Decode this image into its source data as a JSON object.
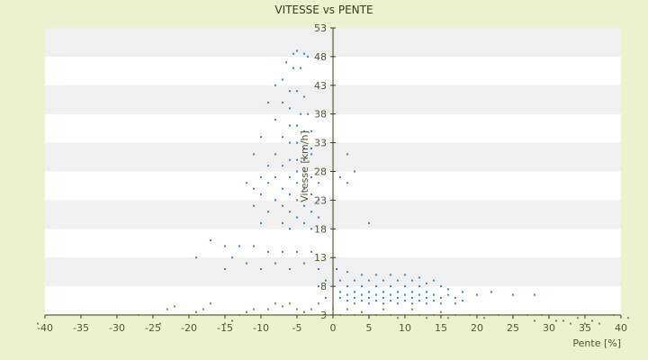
{
  "chart_data": {
    "type": "scatter",
    "title": "VITESSE vs PENTE",
    "xlabel": "Pente [%]",
    "ylabel": "Vitesse [km/h]",
    "xlim": [
      -40,
      40
    ],
    "ylim": [
      3,
      53
    ],
    "x_ticks": [
      -40,
      -35,
      -30,
      -25,
      -20,
      -15,
      -10,
      -5,
      0,
      5,
      10,
      15,
      20,
      25,
      30,
      35,
      40
    ],
    "y_ticks": [
      3,
      8,
      13,
      18,
      23,
      28,
      33,
      38,
      43,
      48,
      53
    ],
    "grid": "horizontal alternating bands",
    "legend": "none",
    "colors": {
      "background": "#ecf2cf",
      "plot_band_light": "#ffffff",
      "plot_band_dark": "#f0f0f0",
      "axis": "#3a3a10",
      "blue_series": "#2e86d4",
      "olive_series": "#8a8a2a"
    },
    "series": [
      {
        "color_key": "blue_series",
        "points": [
          [
            -5.5,
            48.5
          ],
          [
            -5,
            49
          ],
          [
            -4,
            48.5
          ],
          [
            -3.5,
            48
          ],
          [
            -6.5,
            47
          ],
          [
            -5.5,
            46
          ],
          [
            -4.5,
            46
          ],
          [
            -7,
            44
          ],
          [
            -8,
            43
          ],
          [
            -6,
            42
          ],
          [
            -5,
            42
          ],
          [
            -4,
            41
          ],
          [
            -9,
            40
          ],
          [
            -7,
            40
          ],
          [
            -6,
            39
          ],
          [
            -4.5,
            38
          ],
          [
            -3.5,
            38
          ],
          [
            -8,
            37
          ],
          [
            -6,
            36
          ],
          [
            -5,
            36
          ],
          [
            -4,
            35
          ],
          [
            -3,
            35
          ],
          [
            -10,
            34
          ],
          [
            -7,
            34
          ],
          [
            -6,
            33
          ],
          [
            -5,
            33
          ],
          [
            -4,
            32
          ],
          [
            -3,
            32
          ],
          [
            -11,
            31
          ],
          [
            -8,
            31
          ],
          [
            -6,
            30
          ],
          [
            -5,
            30
          ],
          [
            -4,
            30
          ],
          [
            -3,
            31
          ],
          [
            -9,
            29
          ],
          [
            -7,
            29
          ],
          [
            -5,
            28
          ],
          [
            -4,
            28
          ],
          [
            -10,
            27
          ],
          [
            -8,
            27
          ],
          [
            -6,
            27
          ],
          [
            -3,
            27
          ],
          [
            -12,
            26
          ],
          [
            -9,
            26
          ],
          [
            -5,
            26
          ],
          [
            -2,
            26
          ],
          [
            -11,
            25
          ],
          [
            -7,
            25
          ],
          [
            -4,
            25
          ],
          [
            -10,
            24
          ],
          [
            -6,
            24
          ],
          [
            -3,
            24
          ],
          [
            -8,
            23
          ],
          [
            -5,
            23
          ],
          [
            -2,
            23
          ],
          [
            -11,
            22
          ],
          [
            -7,
            22
          ],
          [
            -4,
            22
          ],
          [
            -9,
            21
          ],
          [
            -6,
            21
          ],
          [
            -3,
            21
          ],
          [
            -5,
            20
          ],
          [
            -2,
            20
          ],
          [
            -10,
            19
          ],
          [
            -7,
            19
          ],
          [
            -4,
            19
          ],
          [
            -6,
            18
          ],
          [
            -3,
            18
          ],
          [
            -17,
            16
          ],
          [
            -15,
            15
          ],
          [
            -13,
            15
          ],
          [
            -11,
            15
          ],
          [
            -9,
            14
          ],
          [
            -7,
            14
          ],
          [
            -5,
            14
          ],
          [
            -3,
            14
          ],
          [
            -19,
            13
          ],
          [
            -14,
            13
          ],
          [
            -12,
            12
          ],
          [
            -8,
            12
          ],
          [
            -4,
            12
          ],
          [
            -15,
            11
          ],
          [
            -10,
            11
          ],
          [
            -6,
            11
          ],
          [
            -2,
            11
          ],
          [
            2,
            31
          ],
          [
            3,
            28
          ],
          [
            1,
            27
          ],
          [
            2,
            26
          ],
          [
            5,
            19
          ],
          [
            0.5,
            11
          ],
          [
            2,
            10.5
          ],
          [
            4,
            10
          ],
          [
            6,
            10
          ],
          [
            8,
            10
          ],
          [
            10,
            10
          ],
          [
            12,
            9.5
          ],
          [
            14,
            9
          ],
          [
            1,
            9
          ],
          [
            3,
            9
          ],
          [
            5,
            9
          ],
          [
            7,
            9
          ],
          [
            9,
            9
          ],
          [
            11,
            9
          ],
          [
            13,
            8.5
          ],
          [
            15,
            8
          ],
          [
            2,
            8
          ],
          [
            4,
            8
          ],
          [
            6,
            8
          ],
          [
            8,
            8
          ],
          [
            10,
            8
          ],
          [
            12,
            8
          ],
          [
            16,
            7.5
          ],
          [
            18,
            7
          ],
          [
            1,
            7
          ],
          [
            3,
            7
          ],
          [
            5,
            7
          ],
          [
            7,
            7
          ],
          [
            9,
            7
          ],
          [
            11,
            7
          ],
          [
            13,
            7
          ],
          [
            2,
            6.5
          ],
          [
            4,
            6.5
          ],
          [
            6,
            6.5
          ],
          [
            8,
            6.5
          ],
          [
            10,
            6.5
          ],
          [
            12,
            6.5
          ],
          [
            14,
            6.5
          ],
          [
            16,
            6.5
          ],
          [
            20,
            6.5
          ],
          [
            22,
            7
          ],
          [
            25,
            6.5
          ],
          [
            28,
            6.5
          ],
          [
            1,
            6
          ],
          [
            3,
            6
          ],
          [
            5,
            6
          ],
          [
            7,
            6
          ],
          [
            9,
            6
          ],
          [
            11,
            6
          ],
          [
            13,
            6
          ],
          [
            15,
            6
          ],
          [
            17,
            6
          ],
          [
            2,
            5.5
          ],
          [
            4,
            5.5
          ],
          [
            6,
            5.5
          ],
          [
            8,
            5.5
          ],
          [
            10,
            5.5
          ],
          [
            12,
            5.5
          ],
          [
            14,
            5.5
          ],
          [
            18,
            5.5
          ],
          [
            3,
            5
          ],
          [
            5,
            5
          ],
          [
            7,
            5
          ],
          [
            9,
            5
          ],
          [
            11,
            5
          ],
          [
            13,
            5
          ],
          [
            15,
            5
          ],
          [
            17,
            5
          ],
          [
            -1,
            6
          ],
          [
            -2,
            8
          ],
          [
            -1,
            9
          ]
        ]
      },
      {
        "color_key": "olive_series",
        "points": [
          [
            -41,
            1.5
          ],
          [
            -27,
            3
          ],
          [
            -24,
            1.5
          ],
          [
            -23,
            4
          ],
          [
            -22,
            4.5
          ],
          [
            -20,
            3
          ],
          [
            -19,
            3.5
          ],
          [
            -18,
            4
          ],
          [
            -17,
            5
          ],
          [
            -15,
            1.5
          ],
          [
            -14,
            2
          ],
          [
            -13,
            3
          ],
          [
            -12,
            3.5
          ],
          [
            -11,
            4
          ],
          [
            -10,
            3
          ],
          [
            -9,
            4
          ],
          [
            -8,
            5
          ],
          [
            -7,
            4.5
          ],
          [
            -6,
            5
          ],
          [
            -5,
            4
          ],
          [
            -4,
            3.5
          ],
          [
            -3,
            4
          ],
          [
            -2,
            5
          ],
          [
            -1,
            3
          ],
          [
            0,
            4
          ],
          [
            1,
            3
          ],
          [
            2,
            4
          ],
          [
            3,
            3
          ],
          [
            4,
            3.5
          ],
          [
            5,
            2.5
          ],
          [
            6,
            3
          ],
          [
            7,
            4
          ],
          [
            8,
            3
          ],
          [
            9,
            2.5
          ],
          [
            10,
            3
          ],
          [
            11,
            4
          ],
          [
            12,
            3
          ],
          [
            13,
            2.5
          ],
          [
            14,
            3
          ],
          [
            15,
            3.5
          ],
          [
            16,
            2.5
          ],
          [
            17,
            3
          ],
          [
            19,
            3
          ],
          [
            21,
            2.5
          ],
          [
            23,
            3
          ],
          [
            25,
            2.5
          ],
          [
            27,
            3
          ],
          [
            28,
            2
          ],
          [
            29,
            3
          ],
          [
            30,
            2.5
          ],
          [
            31,
            2
          ],
          [
            32,
            2
          ],
          [
            33,
            1.5
          ],
          [
            34,
            2.5
          ],
          [
            35,
            1.5
          ],
          [
            36,
            2
          ],
          [
            37,
            1.5
          ],
          [
            39,
            3
          ],
          [
            41,
            2.5
          ]
        ]
      }
    ]
  }
}
